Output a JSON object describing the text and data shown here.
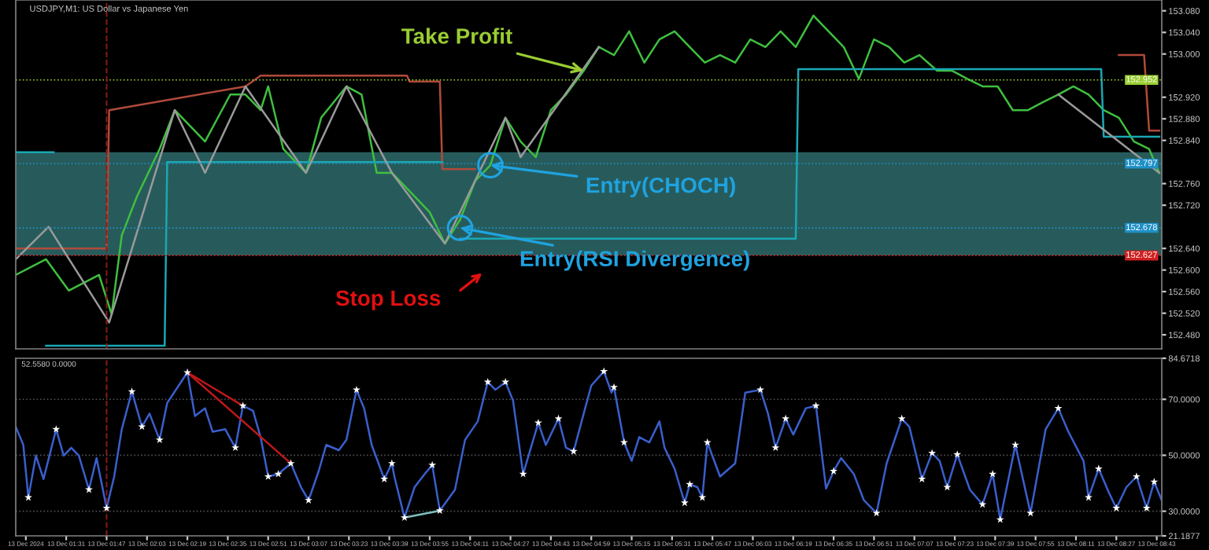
{
  "chart_data": [
    {
      "type": "line",
      "title": "USDJPY,M1: US Dollar vs Japanese Yen",
      "xlim": [
        "2024-12-13T01:11",
        "2024-12-13T08:45"
      ],
      "ylim": [
        152.454,
        153.1
      ],
      "tick_labels": "y",
      "grid": false,
      "yticks": [
        {
          "value": 152.48,
          "label": "152.480"
        },
        {
          "value": 152.52,
          "label": "152.520"
        },
        {
          "value": 152.56,
          "label": "152.560"
        },
        {
          "value": 152.6,
          "label": "152.600"
        },
        {
          "value": 152.64,
          "label": "152.640"
        },
        {
          "value": 152.72,
          "label": "152.720"
        },
        {
          "value": 152.76,
          "label": "152.760"
        },
        {
          "value": 152.84,
          "label": "152.840"
        },
        {
          "value": 152.88,
          "label": "152.880"
        },
        {
          "value": 152.92,
          "label": "152.920"
        },
        {
          "value": 153.0,
          "label": "153.000"
        },
        {
          "value": 153.04,
          "label": "153.040"
        },
        {
          "value": 153.08,
          "label": "153.080"
        }
      ],
      "series": [
        {
          "color": "#3fbf3f",
          "x": [
            "2024-12-13T01:11",
            "2024-12-13T01:23",
            "2024-12-13T01:32",
            "2024-12-13T01:44",
            "2024-12-13T01:49",
            "2024-12-13T01:53",
            "2024-12-13T01:59",
            "2024-12-13T02:08",
            "2024-12-13T02:14",
            "2024-12-13T02:20",
            "2024-12-13T02:26",
            "2024-12-13T02:36",
            "2024-12-13T02:42",
            "2024-12-13T02:48",
            "2024-12-13T02:51",
            "2024-12-13T02:57",
            "2024-12-13T03:06",
            "2024-12-13T03:12",
            "2024-12-13T03:22",
            "2024-12-13T03:28",
            "2024-12-13T03:34",
            "2024-12-13T03:40",
            "2024-12-13T03:46",
            "2024-12-13T03:55",
            "2024-12-13T04:01",
            "2024-12-13T04:07",
            "2024-12-13T04:13",
            "2024-12-13T04:19",
            "2024-12-13T04:25",
            "2024-12-13T04:31",
            "2024-12-13T04:37",
            "2024-12-13T04:43",
            "2024-12-13T04:49",
            "2024-12-13T04:56",
            "2024-12-13T05:02",
            "2024-12-13T05:08",
            "2024-12-13T05:14",
            "2024-12-13T05:20",
            "2024-12-13T05:26",
            "2024-12-13T05:32",
            "2024-12-13T05:38",
            "2024-12-13T05:44",
            "2024-12-13T05:50",
            "2024-12-13T05:56",
            "2024-12-13T06:02",
            "2024-12-13T06:08",
            "2024-12-13T06:14",
            "2024-12-13T06:20",
            "2024-12-13T06:27",
            "2024-12-13T06:33",
            "2024-12-13T06:39",
            "2024-12-13T06:45",
            "2024-12-13T06:51",
            "2024-12-13T06:57",
            "2024-12-13T07:03",
            "2024-12-13T07:09",
            "2024-12-13T07:16",
            "2024-12-13T07:22",
            "2024-12-13T07:28",
            "2024-12-13T07:34",
            "2024-12-13T07:40",
            "2024-12-13T07:46",
            "2024-12-13T07:52",
            "2024-12-13T07:58",
            "2024-12-13T08:04",
            "2024-12-13T08:10",
            "2024-12-13T08:16",
            "2024-12-13T08:22",
            "2024-12-13T08:28",
            "2024-12-13T08:34",
            "2024-12-13T08:40",
            "2024-12-13T08:44"
          ],
          "values": [
            152.591,
            152.62,
            152.562,
            152.591,
            152.518,
            152.664,
            152.736,
            152.824,
            152.896,
            152.867,
            152.838,
            152.925,
            152.925,
            152.896,
            152.94,
            152.824,
            152.78,
            152.882,
            152.94,
            152.925,
            152.78,
            152.78,
            152.751,
            152.707,
            152.649,
            152.693,
            152.765,
            152.794,
            152.882,
            152.838,
            152.809,
            152.896,
            152.925,
            152.969,
            153.013,
            152.998,
            153.042,
            152.984,
            153.027,
            153.042,
            153.013,
            152.984,
            152.998,
            152.984,
            153.027,
            153.013,
            153.042,
            153.013,
            153.071,
            153.042,
            153.013,
            152.954,
            153.027,
            153.013,
            152.984,
            152.998,
            152.969,
            152.969,
            152.954,
            152.94,
            152.94,
            152.896,
            152.896,
            152.911,
            152.925,
            152.94,
            152.925,
            152.896,
            152.882,
            152.838,
            152.824,
            152.78
          ]
        },
        {
          "color": "#b04a3a",
          "x": [
            "2024-12-13T01:11",
            "2024-12-13T01:47",
            "2024-12-13T01:48",
            "2024-12-13T02:42",
            "2024-12-13T02:48",
            "2024-12-13T03:46",
            "2024-12-13T03:47",
            "2024-12-13T03:59",
            "2024-12-13T04:00",
            "2024-12-13T04:13"
          ],
          "values": [
            152.64,
            152.64,
            152.896,
            152.94,
            152.96,
            152.96,
            152.949,
            152.949,
            152.787,
            152.787
          ]
        },
        {
          "color": "#b04a3a",
          "x": [
            "2024-12-13T08:28",
            "2024-12-13T08:38",
            "2024-12-13T08:40",
            "2024-12-13T08:44"
          ],
          "values": [
            152.998,
            152.998,
            152.858,
            152.858
          ]
        },
        {
          "color": "#1aa7b5",
          "x": [
            "2024-12-13T01:11",
            "2024-12-13T01:26"
          ],
          "values": [
            152.818,
            152.818
          ]
        },
        {
          "color": "#1aa7b5",
          "x": [
            "2024-12-13T01:23",
            "2024-12-13T02:10",
            "2024-12-13T02:11",
            "2024-12-13T04:00"
          ],
          "values": [
            152.46,
            152.46,
            152.8,
            152.8
          ]
        },
        {
          "color": "#1aa7b5",
          "x": [
            "2024-12-13T04:07",
            "2024-12-13T06:20",
            "2024-12-13T06:21",
            "2024-12-13T08:21",
            "2024-12-13T08:22",
            "2024-12-13T08:44"
          ],
          "values": [
            152.658,
            152.658,
            152.972,
            152.972,
            152.847,
            152.847
          ]
        },
        {
          "color": "#9a9a9a",
          "x": [
            "2024-12-13T01:11",
            "2024-12-13T01:24",
            "2024-12-13T01:48",
            "2024-12-13T02:14",
            "2024-12-13T02:26",
            "2024-12-13T02:42",
            "2024-12-13T03:06",
            "2024-12-13T03:22",
            "2024-12-13T03:40",
            "2024-12-13T04:01",
            "2024-12-13T04:25",
            "2024-12-13T04:31",
            "2024-12-13T05:02"
          ],
          "values": [
            152.62,
            152.68,
            152.503,
            152.896,
            152.78,
            152.94,
            152.78,
            152.94,
            152.78,
            152.649,
            152.882,
            152.809,
            153.013
          ]
        },
        {
          "color": "#9a9a9a",
          "x": [
            "2024-12-13T08:04",
            "2024-12-13T08:44"
          ],
          "values": [
            152.925,
            152.78
          ]
        }
      ],
      "bands": [
        {
          "axis": "y",
          "from": 152.627,
          "to": 152.818,
          "color": "#2e6b6b"
        }
      ],
      "ref_lines": [
        {
          "axis": "y",
          "value": 152.952,
          "label": "152.952",
          "color": "#9acd32",
          "line_style": "dotted"
        },
        {
          "axis": "y",
          "value": 152.797,
          "label": "152.797",
          "color": "#1e90c8",
          "line_style": "dotted"
        },
        {
          "axis": "y",
          "value": 152.678,
          "label": "152.678",
          "color": "#1e90c8",
          "line_style": "dotted"
        },
        {
          "axis": "y",
          "value": 152.627,
          "label": "152.627",
          "color": "#d02020",
          "line_style": "dotted"
        },
        {
          "axis": "x",
          "value": "2024-12-13T01:47",
          "color": "#8b1a1a",
          "line_style": "dashed"
        }
      ],
      "annotations": [
        {
          "text": "Take Profit",
          "x": "2024-12-13T04:56",
          "y": 152.969
        },
        "Stop Loss",
        {
          "text": "Entry(CHOCH)",
          "x": "2024-12-13T04:19",
          "y": 152.794
        },
        {
          "text": "Entry(RSI Divergence)",
          "x": "2024-12-13T04:07",
          "y": 152.678
        }
      ]
    },
    {
      "type": "line",
      "xlim": [
        "2024-12-13T01:11",
        "2024-12-13T08:45"
      ],
      "ylim": [
        21.1877,
        84.6718
      ],
      "grid": "y",
      "yticks": [
        {
          "value": 21.1877,
          "label": "21.1877"
        },
        {
          "value": 30,
          "label": "30.0000"
        },
        {
          "value": 50,
          "label": "50.0000"
        },
        {
          "value": 70,
          "label": "70.0000"
        },
        {
          "value": 84.6718,
          "label": "84.6718"
        }
      ],
      "xticks": [
        {
          "value": "2024-12-13T01:15",
          "label": "13 Dec 2024"
        },
        {
          "value": "2024-12-13T01:31",
          "label": "13 Dec 01:31"
        },
        {
          "value": "2024-12-13T01:47",
          "label": "13 Dec 01:47"
        },
        {
          "value": "2024-12-13T02:03",
          "label": "13 Dec 02:03"
        },
        {
          "value": "2024-12-13T02:19",
          "label": "13 Dec 02:19"
        },
        {
          "value": "2024-12-13T02:35",
          "label": "13 Dec 02:35"
        },
        {
          "value": "2024-12-13T02:51",
          "label": "13 Dec 02:51"
        },
        {
          "value": "2024-12-13T03:07",
          "label": "13 Dec 03:07"
        },
        {
          "value": "2024-12-13T03:23",
          "label": "13 Dec 03:23"
        },
        {
          "value": "2024-12-13T03:39",
          "label": "13 Dec 03:39"
        },
        {
          "value": "2024-12-13T03:55",
          "label": "13 Dec 03:55"
        },
        {
          "value": "2024-12-13T04:11",
          "label": "13 Dec 04:11"
        },
        {
          "value": "2024-12-13T04:27",
          "label": "13 Dec 04:27"
        },
        {
          "value": "2024-12-13T04:43",
          "label": "13 Dec 04:43"
        },
        {
          "value": "2024-12-13T04:59",
          "label": "13 Dec 04:59"
        },
        {
          "value": "2024-12-13T05:15",
          "label": "13 Dec 05:15"
        },
        {
          "value": "2024-12-13T05:31",
          "label": "13 Dec 05:31"
        },
        {
          "value": "2024-12-13T05:47",
          "label": "13 Dec 05:47"
        },
        {
          "value": "2024-12-13T06:03",
          "label": "13 Dec 06:03"
        },
        {
          "value": "2024-12-13T06:19",
          "label": "13 Dec 06:19"
        },
        {
          "value": "2024-12-13T06:35",
          "label": "13 Dec 06:35"
        },
        {
          "value": "2024-12-13T06:51",
          "label": "13 Dec 06:51"
        },
        {
          "value": "2024-12-13T07:07",
          "label": "13 Dec 07:07"
        },
        {
          "value": "2024-12-13T07:23",
          "label": "13 Dec 07:23"
        },
        {
          "value": "2024-12-13T07:39",
          "label": "13 Dec 07:39"
        },
        {
          "value": "2024-12-13T07:55",
          "label": "13 Dec 07:55"
        },
        {
          "value": "2024-12-13T08:11",
          "label": "13 Dec 08:11"
        },
        {
          "value": "2024-12-13T08:27",
          "label": "13 Dec 08:27"
        },
        {
          "value": "2024-12-13T08:43",
          "label": "13 Dec 08:43"
        }
      ],
      "series": [
        {
          "color": "#3a5fcd",
          "x": [
            "2024-12-13T01:11",
            "2024-12-13T01:14",
            "2024-12-13T01:16",
            "2024-12-13T01:19",
            "2024-12-13T01:22",
            "2024-12-13T01:27",
            "2024-12-13T01:30",
            "2024-12-13T01:33",
            "2024-12-13T01:36",
            "2024-12-13T01:40",
            "2024-12-13T01:43",
            "2024-12-13T01:47",
            "2024-12-13T01:50",
            "2024-12-13T01:53",
            "2024-12-13T01:57",
            "2024-12-13T02:01",
            "2024-12-13T02:04",
            "2024-12-13T02:08",
            "2024-12-13T02:11",
            "2024-12-13T02:19",
            "2024-12-13T02:22",
            "2024-12-13T02:26",
            "2024-12-13T02:29",
            "2024-12-13T02:34",
            "2024-12-13T02:38",
            "2024-12-13T02:41",
            "2024-12-13T02:45",
            "2024-12-13T02:48",
            "2024-12-13T02:51",
            "2024-12-13T02:55",
            "2024-12-13T03:00",
            "2024-12-13T03:04",
            "2024-12-13T03:07",
            "2024-12-13T03:11",
            "2024-12-13T03:14",
            "2024-12-13T03:19",
            "2024-12-13T03:22",
            "2024-12-13T03:26",
            "2024-12-13T03:29",
            "2024-12-13T03:32",
            "2024-12-13T03:37",
            "2024-12-13T03:40",
            "2024-12-13T03:41",
            "2024-12-13T03:45",
            "2024-12-13T03:49",
            "2024-12-13T03:53",
            "2024-12-13T03:56",
            "2024-12-13T03:59",
            "2024-12-13T04:05",
            "2024-12-13T04:09",
            "2024-12-13T04:14",
            "2024-12-13T04:18",
            "2024-12-13T04:21",
            "2024-12-13T04:25",
            "2024-12-13T04:28",
            "2024-12-13T04:32",
            "2024-12-13T04:38",
            "2024-12-13T04:41",
            "2024-12-13T04:46",
            "2024-12-13T04:49",
            "2024-12-13T04:52",
            "2024-12-13T04:56",
            "2024-12-13T04:59",
            "2024-12-13T05:04",
            "2024-12-13T05:07",
            "2024-12-13T05:08",
            "2024-12-13T05:12",
            "2024-12-13T05:15",
            "2024-12-13T05:18",
            "2024-12-13T05:22",
            "2024-12-13T05:25",
            "2024-12-13T05:26",
            "2024-12-13T05:28",
            "2024-12-13T05:32",
            "2024-12-13T05:36",
            "2024-12-13T05:38",
            "2024-12-13T05:41",
            "2024-12-13T05:43",
            "2024-12-13T05:45",
            "2024-12-13T05:50",
            "2024-12-13T05:56",
            "2024-12-13T06:00",
            "2024-12-13T06:06",
            "2024-12-13T06:09",
            "2024-12-13T06:12",
            "2024-12-13T06:16",
            "2024-12-13T06:19",
            "2024-12-13T06:24",
            "2024-12-13T06:28",
            "2024-12-13T06:32",
            "2024-12-13T06:35",
            "2024-12-13T06:38",
            "2024-12-13T06:43",
            "2024-12-13T06:47",
            "2024-12-13T06:52",
            "2024-12-13T06:56",
            "2024-12-13T07:02",
            "2024-12-13T07:05",
            "2024-12-13T07:10",
            "2024-12-13T07:14",
            "2024-12-13T07:17",
            "2024-12-13T07:20",
            "2024-12-13T07:24",
            "2024-12-13T07:29",
            "2024-12-13T07:34",
            "2024-12-13T07:38",
            "2024-12-13T07:41",
            "2024-12-13T07:47",
            "2024-12-13T07:53",
            "2024-12-13T07:59",
            "2024-12-13T08:04",
            "2024-12-13T08:08",
            "2024-12-13T08:14",
            "2024-12-13T08:16",
            "2024-12-13T08:20",
            "2024-12-13T08:24",
            "2024-12-13T08:27",
            "2024-12-13T08:31",
            "2024-12-13T08:35",
            "2024-12-13T08:39",
            "2024-12-13T08:42",
            "2024-12-13T08:45"
          ],
          "values": [
            60.2,
            53.7,
            34.9,
            49.9,
            41.5,
            59.3,
            49.9,
            52.7,
            49.9,
            37.7,
            49.0,
            31.1,
            42.4,
            59.3,
            72.8,
            60.2,
            64.9,
            55.5,
            68.7,
            79.6,
            64.0,
            66.8,
            58.4,
            59.3,
            52.7,
            67.7,
            65.9,
            56.5,
            42.4,
            43.3,
            47.1,
            38.6,
            33.9,
            44.3,
            53.7,
            51.8,
            55.5,
            73.4,
            66.8,
            53.7,
            41.5,
            47.1,
            42.4,
            27.7,
            38.6,
            43.3,
            46.5,
            30.2,
            37.7,
            55.5,
            62.1,
            76.2,
            73.4,
            76.2,
            69.6,
            43.3,
            61.6,
            53.7,
            63.1,
            52.7,
            51.4,
            64.9,
            74.9,
            80.0,
            72.4,
            74.3,
            54.6,
            48.0,
            56.5,
            54.6,
            60.2,
            62.1,
            52.7,
            45.2,
            33.0,
            39.6,
            38.6,
            34.9,
            54.6,
            42.4,
            47.1,
            72.4,
            73.4,
            64.9,
            52.7,
            63.1,
            57.4,
            66.8,
            67.7,
            38.1,
            44.3,
            49.0,
            43.3,
            33.9,
            29.3,
            47.1,
            63.1,
            60.2,
            41.5,
            50.8,
            48.0,
            38.6,
            50.3,
            37.7,
            32.4,
            43.3,
            27.0,
            53.7,
            29.3,
            59.3,
            66.8,
            58.4,
            48.0,
            34.9,
            45.2,
            36.8,
            31.1,
            38.6,
            42.4,
            31.1,
            40.5,
            33.9
          ]
        },
        {
          "type": "scatter",
          "color": "#ffffff",
          "marker": "star",
          "x": [
            "2024-12-13T01:16",
            "2024-12-13T01:27",
            "2024-12-13T01:40",
            "2024-12-13T01:47",
            "2024-12-13T01:57",
            "2024-12-13T02:01",
            "2024-12-13T02:08",
            "2024-12-13T02:19",
            "2024-12-13T02:38",
            "2024-12-13T02:41",
            "2024-12-13T02:51",
            "2024-12-13T02:55",
            "2024-12-13T03:00",
            "2024-12-13T03:07",
            "2024-12-13T03:26",
            "2024-12-13T03:37",
            "2024-12-13T03:40",
            "2024-12-13T03:45",
            "2024-12-13T03:56",
            "2024-12-13T03:59",
            "2024-12-13T04:18",
            "2024-12-13T04:25",
            "2024-12-13T04:32",
            "2024-12-13T04:38",
            "2024-12-13T04:46",
            "2024-12-13T04:52",
            "2024-12-13T05:04",
            "2024-12-13T05:08",
            "2024-12-13T05:12",
            "2024-12-13T05:36",
            "2024-12-13T05:38",
            "2024-12-13T05:43",
            "2024-12-13T05:45",
            "2024-12-13T06:06",
            "2024-12-13T06:12",
            "2024-12-13T06:16",
            "2024-12-13T06:28",
            "2024-12-13T06:35",
            "2024-12-13T06:52",
            "2024-12-13T07:02",
            "2024-12-13T07:10",
            "2024-12-13T07:14",
            "2024-12-13T07:20",
            "2024-12-13T07:24",
            "2024-12-13T07:34",
            "2024-12-13T07:38",
            "2024-12-13T07:41",
            "2024-12-13T07:47",
            "2024-12-13T07:53",
            "2024-12-13T08:04",
            "2024-12-13T08:16",
            "2024-12-13T08:20",
            "2024-12-13T08:27",
            "2024-12-13T08:35",
            "2024-12-13T08:39",
            "2024-12-13T08:42"
          ],
          "values": [
            34.9,
            59.3,
            37.7,
            31.1,
            72.8,
            60.2,
            55.5,
            79.6,
            52.7,
            67.7,
            42.4,
            43.3,
            47.1,
            33.9,
            73.4,
            41.5,
            47.1,
            27.7,
            46.5,
            30.2,
            76.2,
            76.2,
            43.3,
            61.6,
            63.1,
            51.4,
            80.0,
            74.3,
            54.6,
            33.0,
            39.6,
            34.9,
            54.6,
            73.4,
            52.7,
            63.1,
            67.7,
            44.3,
            29.3,
            63.1,
            41.5,
            50.8,
            38.6,
            50.3,
            32.4,
            43.3,
            27.0,
            53.7,
            29.3,
            66.8,
            34.9,
            45.2,
            31.1,
            42.4,
            31.1,
            40.5
          ]
        },
        {
          "color": "#c01818",
          "x": [
            "2024-12-13T02:19",
            "2024-12-13T02:41"
          ],
          "values": [
            79.6,
            67.7
          ]
        },
        {
          "color": "#c01818",
          "x": [
            "2024-12-13T02:19",
            "2024-12-13T03:00"
          ],
          "values": [
            79.6,
            47.1
          ]
        },
        {
          "color": "#7fbfbf",
          "x": [
            "2024-12-13T03:45",
            "2024-12-13T03:59"
          ],
          "values": [
            27.7,
            30.2
          ]
        }
      ],
      "ref_lines": [
        {
          "axis": "x",
          "value": "2024-12-13T01:47",
          "color": "#8b1a1a",
          "line_style": "dashed"
        }
      ],
      "annotations": [
        "52.5580 0.0000"
      ]
    }
  ]
}
